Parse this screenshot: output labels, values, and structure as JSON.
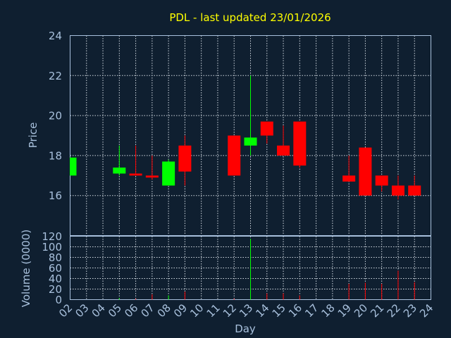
{
  "chart_data": {
    "type": "candlestick",
    "title": "PDL - last updated 23/01/2026",
    "xlabel": "Day",
    "x_ticks": [
      "02",
      "03",
      "04",
      "05",
      "06",
      "07",
      "08",
      "09",
      "10",
      "11",
      "12",
      "13",
      "14",
      "15",
      "16",
      "17",
      "18",
      "19",
      "20",
      "21",
      "22",
      "23",
      "24"
    ],
    "price_panel": {
      "ylabel": "Price",
      "ylim": [
        14,
        24
      ],
      "y_ticks": [
        "16",
        "18",
        "20",
        "22",
        "24"
      ],
      "grid": true
    },
    "volume_panel": {
      "ylabel": "Volume (0000)",
      "ylim": [
        0,
        120
      ],
      "y_ticks": [
        "0",
        "20",
        "40",
        "60",
        "80",
        "100",
        "120"
      ],
      "grid": true
    },
    "up_color": "#00ff00",
    "down_color": "#ff0000",
    "candles": [
      {
        "day": "02",
        "open": 17.0,
        "high": 17.9,
        "low": 17.0,
        "close": 17.9,
        "volume": 0
      },
      {
        "day": "05",
        "open": 17.1,
        "high": 18.5,
        "low": 17.0,
        "close": 17.4,
        "volume": 3
      },
      {
        "day": "06",
        "open": 17.1,
        "high": 18.5,
        "low": 17.0,
        "close": 17.0,
        "volume": 2
      },
      {
        "day": "07",
        "open": 17.0,
        "high": 18.0,
        "low": 16.8,
        "close": 16.9,
        "volume": 10
      },
      {
        "day": "08",
        "open": 16.5,
        "high": 17.8,
        "low": 16.5,
        "close": 17.7,
        "volume": 8
      },
      {
        "day": "09",
        "open": 18.5,
        "high": 19.0,
        "low": 16.5,
        "close": 17.2,
        "volume": 15
      },
      {
        "day": "12",
        "open": 19.0,
        "high": 19.0,
        "low": 17.0,
        "close": 17.0,
        "volume": 2
      },
      {
        "day": "13",
        "open": 18.5,
        "high": 22.0,
        "low": 18.0,
        "close": 18.9,
        "volume": 115
      },
      {
        "day": "14",
        "open": 19.7,
        "high": 19.7,
        "low": 18.6,
        "close": 19.0,
        "volume": 12
      },
      {
        "day": "15",
        "open": 18.5,
        "high": 19.5,
        "low": 18.0,
        "close": 18.0,
        "volume": 12
      },
      {
        "day": "16",
        "open": 19.7,
        "high": 19.7,
        "low": 17.4,
        "close": 17.5,
        "volume": 8
      },
      {
        "day": "19",
        "open": 17.0,
        "high": 18.0,
        "low": 16.7,
        "close": 16.7,
        "volume": 30
      },
      {
        "day": "20",
        "open": 18.4,
        "high": 18.4,
        "low": 16.0,
        "close": 16.0,
        "volume": 32
      },
      {
        "day": "21",
        "open": 17.0,
        "high": 17.0,
        "low": 16.2,
        "close": 16.5,
        "volume": 30
      },
      {
        "day": "22",
        "open": 16.5,
        "high": 17.0,
        "low": 15.8,
        "close": 16.0,
        "volume": 55
      },
      {
        "day": "23",
        "open": 16.5,
        "high": 17.0,
        "low": 16.0,
        "close": 16.0,
        "volume": 33
      }
    ]
  }
}
